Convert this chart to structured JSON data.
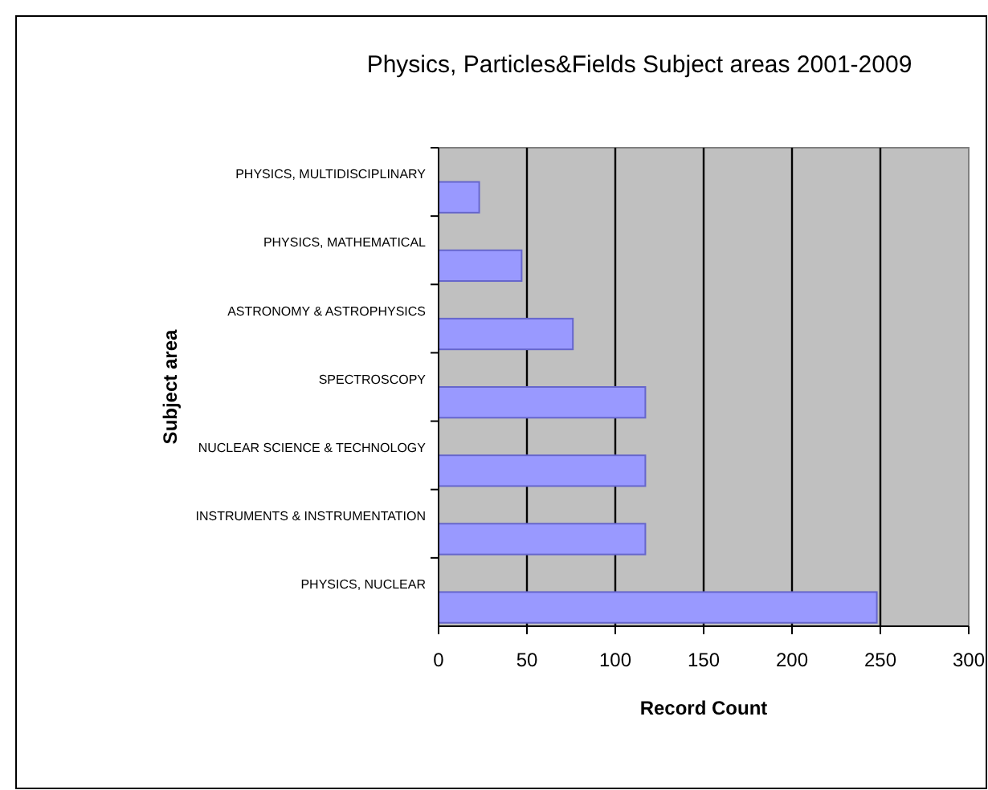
{
  "chart_data": {
    "type": "bar",
    "orientation": "horizontal",
    "title": "Physics, Particles&Fields Subject areas 2001-2009",
    "xlabel": "Record Count",
    "ylabel": "Subject area",
    "categories": [
      "PHYSICS, MULTIDISCIPLINARY",
      "PHYSICS, MATHEMATICAL",
      "ASTRONOMY & ASTROPHYSICS",
      "SPECTROSCOPY",
      "NUCLEAR SCIENCE & TECHNOLOGY",
      "INSTRUMENTS & INSTRUMENTATION",
      "PHYSICS, NUCLEAR"
    ],
    "values": [
      23,
      47,
      76,
      117,
      117,
      117,
      248
    ],
    "color": "#9999ff",
    "xlim": [
      0,
      300
    ],
    "xticks": [
      0,
      50,
      100,
      150,
      200,
      250,
      300
    ],
    "grid": "x"
  }
}
